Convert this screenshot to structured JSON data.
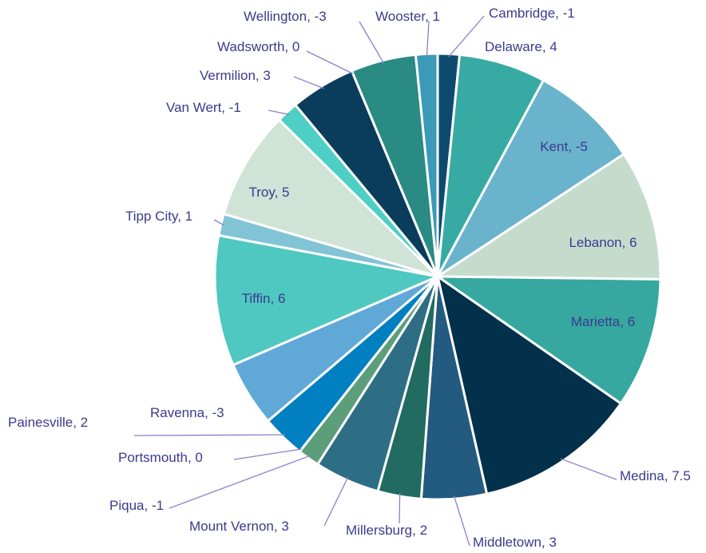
{
  "chart_data": {
    "type": "pie",
    "categories": [
      "Cambridge",
      "Delaware",
      "Kent",
      "Lebanon",
      "Marietta",
      "Medina",
      "Middletown",
      "Millersburg",
      "Mount Vernon",
      "Piqua",
      "Portsmouth",
      "Painesville",
      "Ravenna",
      "Tiffin",
      "Tipp City",
      "Troy",
      "Van Wert",
      "Vermilion",
      "Wadsworth",
      "Wellington",
      "Wooster"
    ],
    "values": [
      -1,
      4,
      -5,
      6,
      6,
      7.5,
      3,
      2,
      3,
      -1,
      0,
      2,
      -3,
      6,
      1,
      5,
      -1,
      3,
      0,
      -3,
      1
    ],
    "colors": [
      "#0e4a6e",
      "#37aba3",
      "#6ab3cc",
      "#c5dccd",
      "#36a8a0",
      "#03304a",
      "#235a80",
      "#216b60",
      "#2e6e84",
      "#5d9e7a",
      "#3a7f9a",
      "#0080c0",
      "#5fa8d8",
      "#4ec8c0",
      "#80c4d6",
      "#cfe3d6",
      "#4ecfc5",
      "#0a3d5c",
      "#1d6f80",
      "#2a8a84",
      "#3a9ab8"
    ]
  }
}
